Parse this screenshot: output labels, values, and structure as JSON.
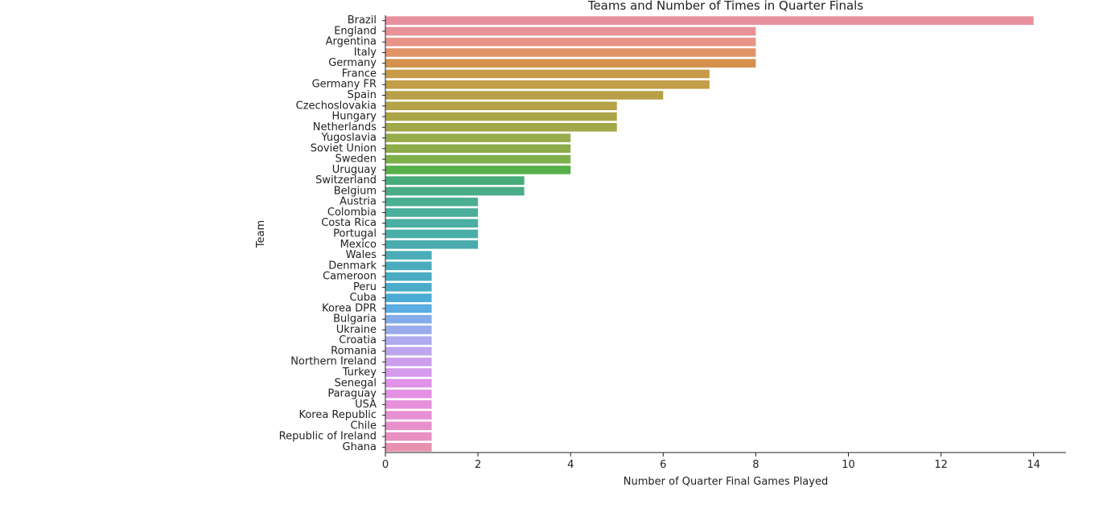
{
  "chart_data": {
    "type": "bar",
    "orientation": "horizontal",
    "title": "Teams and Number of Times in Quarter Finals",
    "xlabel": "Number of Quarter Final Games Played",
    "ylabel": "Team",
    "xlim": [
      0,
      14.7
    ],
    "xticks": [
      0,
      2,
      4,
      6,
      8,
      10,
      12,
      14
    ],
    "grid": false,
    "categories": [
      "Brazil",
      "England",
      "Argentina",
      "Italy",
      "Germany",
      "France",
      "Germany FR",
      "Spain",
      "Czechoslovakia",
      "Hungary",
      "Netherlands",
      "Yugoslavia",
      "Soviet Union",
      "Sweden",
      "Uruguay",
      "Switzerland",
      "Belgium",
      "Austria",
      "Colombia",
      "Costa Rica",
      "Portugal",
      "Mexico",
      "Wales",
      "Denmark",
      "Cameroon",
      "Peru",
      "Cuba",
      "Korea DPR",
      "Bulgaria",
      "Ukraine",
      "Croatia",
      "Romania",
      "Northern Ireland",
      "Turkey",
      "Senegal",
      "Paraguay",
      "USA",
      "Korea Republic",
      "Chile",
      "Republic of Ireland",
      "Ghana"
    ],
    "values": [
      14,
      8,
      8,
      8,
      8,
      7,
      7,
      6,
      5,
      5,
      5,
      4,
      4,
      4,
      4,
      3,
      3,
      2,
      2,
      2,
      2,
      2,
      1,
      1,
      1,
      1,
      1,
      1,
      1,
      1,
      1,
      1,
      1,
      1,
      1,
      1,
      1,
      1,
      1,
      1,
      1
    ],
    "colors": [
      "#e8909e",
      "#e8929a",
      "#e89488",
      "#e29468",
      "#d3914c",
      "#c89a48",
      "#c29e48",
      "#b9a048",
      "#b3a248",
      "#aba548",
      "#a2a848",
      "#97ac4a",
      "#8bac48",
      "#7eb04a",
      "#56b04a",
      "#48ac7a",
      "#4aac88",
      "#4aae92",
      "#4aae9a",
      "#4aaea2",
      "#4aaea8",
      "#4aacae",
      "#4aacb6",
      "#4aacbc",
      "#4aacc2",
      "#4aacca",
      "#4aacd4",
      "#5aace2",
      "#84acea",
      "#98acec",
      "#aeaaee",
      "#bea6ee",
      "#cc9eec",
      "#d69aec",
      "#e292e8",
      "#e490e4",
      "#e690dc",
      "#e890d4",
      "#e890cc",
      "#e890c2",
      "#e890b0"
    ]
  }
}
